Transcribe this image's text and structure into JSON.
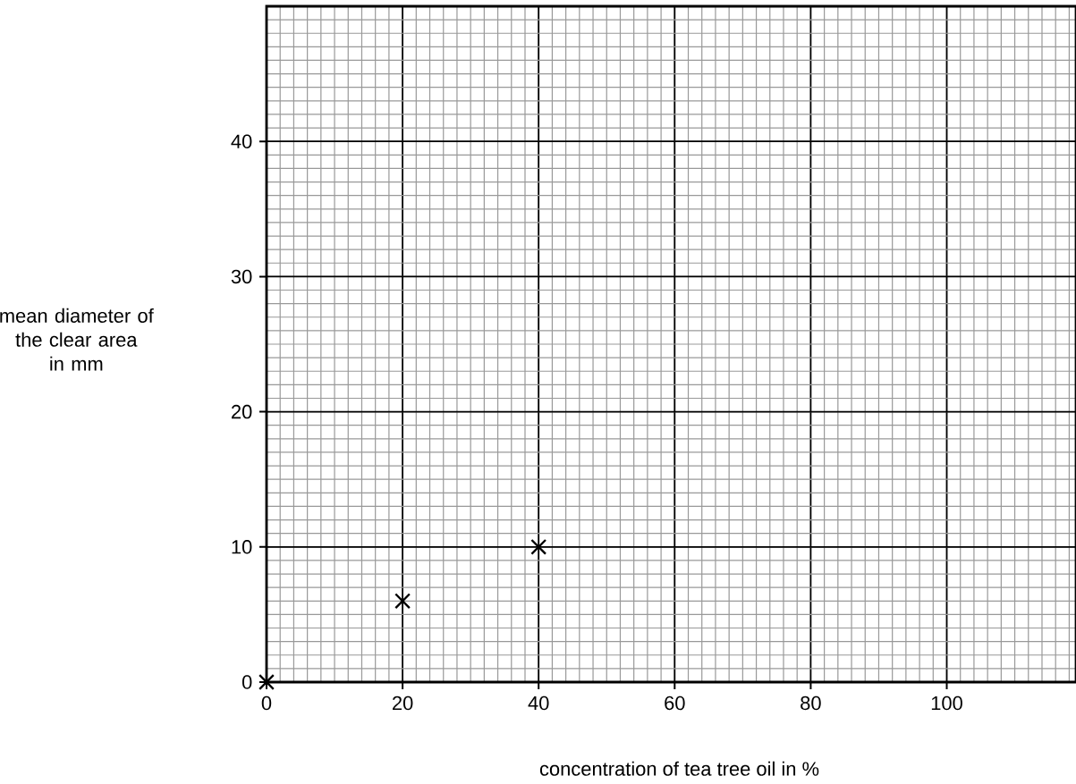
{
  "chart_data": {
    "type": "scatter",
    "xlabel": "concentration of tea tree oil in %",
    "ylabel": "mean diameter of\nthe clear area\nin mm",
    "x": [
      0,
      20,
      40
    ],
    "values": [
      0,
      6,
      10
    ],
    "color": "#000000",
    "marker": "cross",
    "xlim": [
      0,
      119
    ],
    "ylim": [
      0,
      50
    ],
    "xticks": [
      0,
      20,
      40,
      60,
      80,
      100
    ],
    "yticks": [
      0,
      10,
      20,
      30,
      40
    ],
    "grid": true
  }
}
